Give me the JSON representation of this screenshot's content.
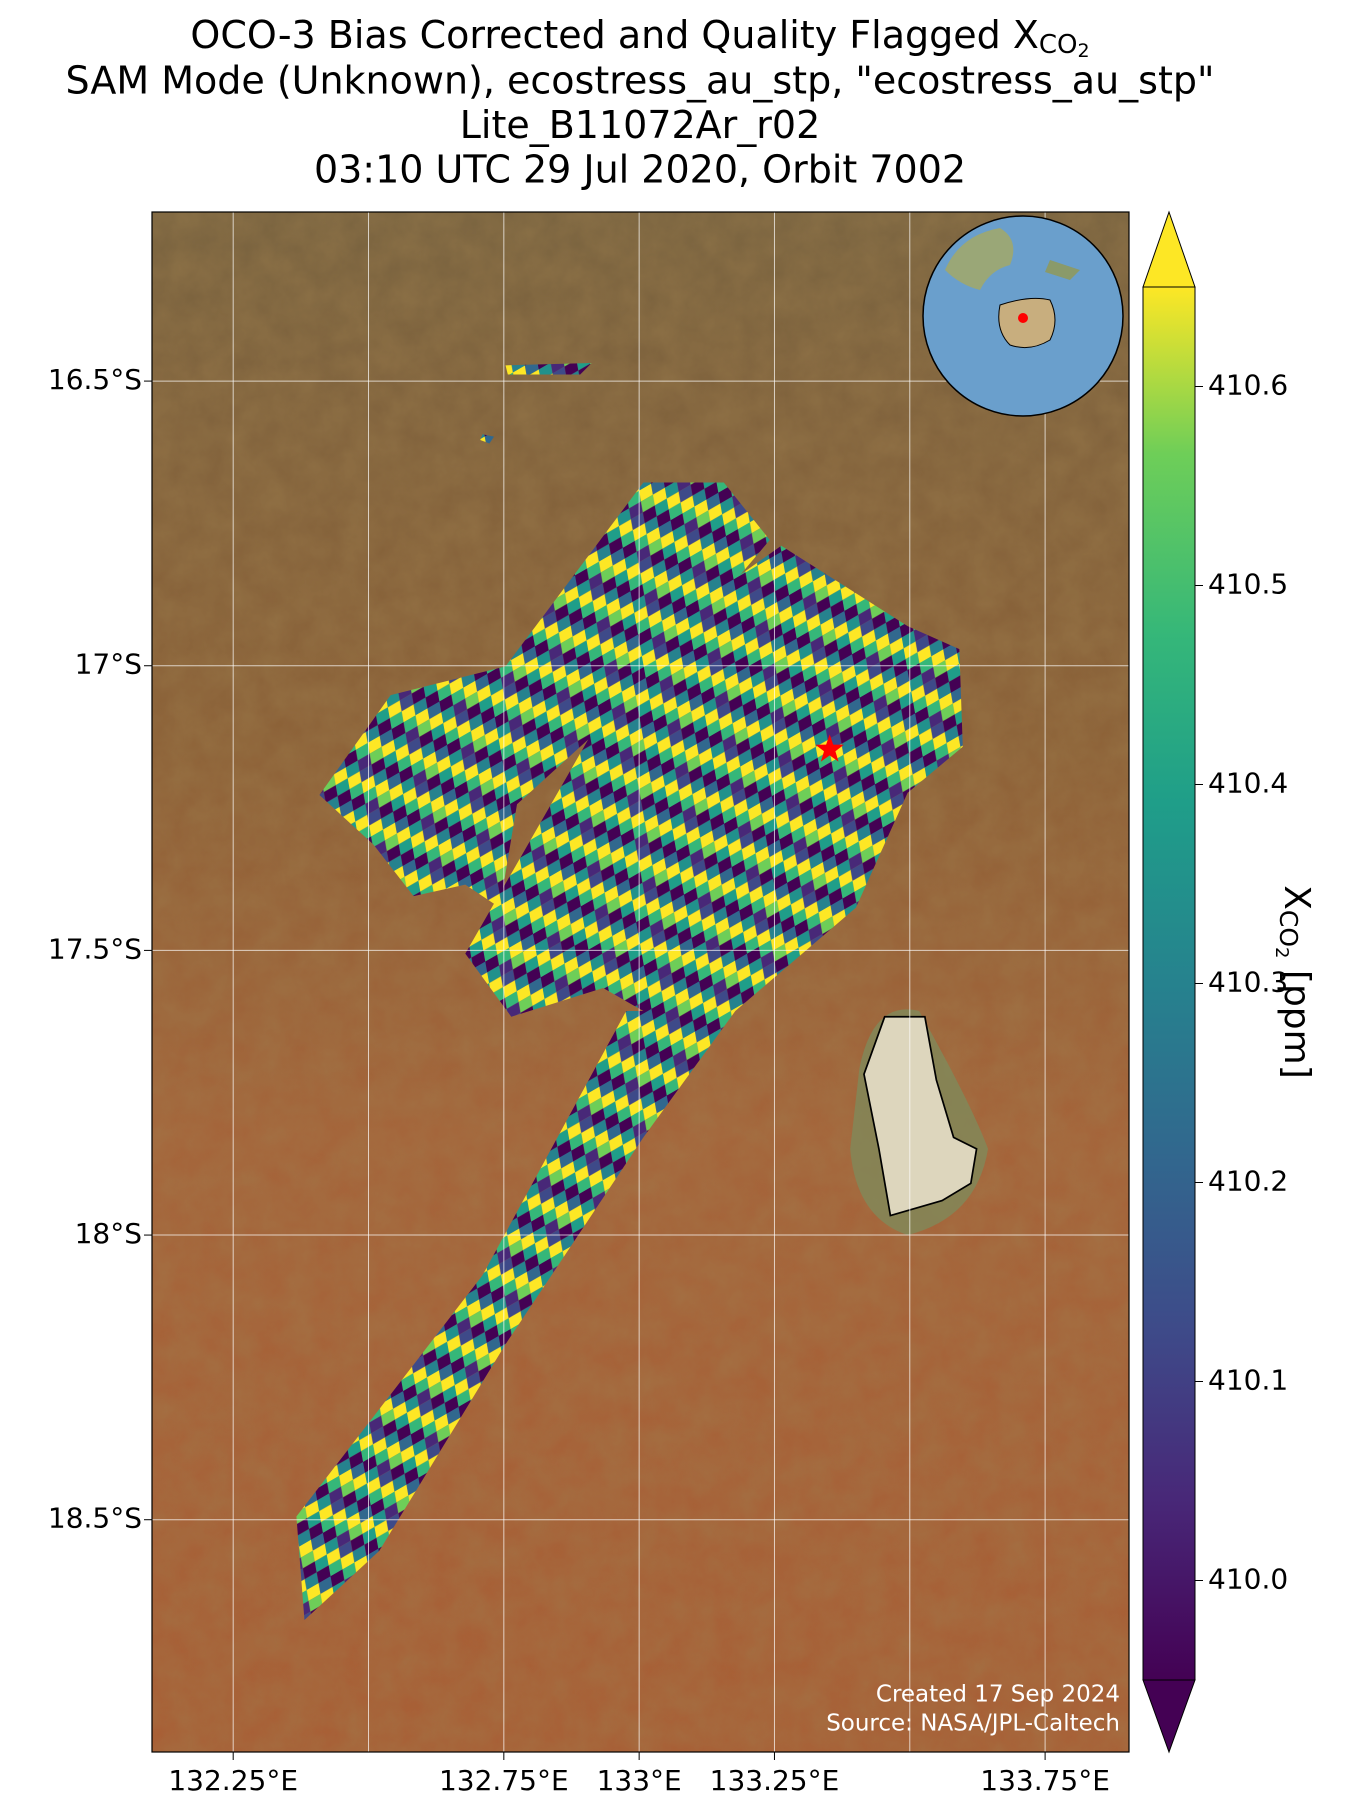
{
  "chart_data": {
    "type": "map",
    "title_line1": {
      "main": "OCO-3 Bias Corrected and Quality Flagged X",
      "sub": "CO",
      "subsub": "2"
    },
    "title_lines": [
      "SAM Mode (Unknown), ecostress_au_stp, \"ecostress_au_stp\"",
      "Lite_B11072Ar_r02",
      "03:10 UTC 29 Jul 2020, Orbit 7002"
    ],
    "xlim": [
      132.1,
      133.905
    ],
    "ylim": [
      -18.908,
      -16.203
    ],
    "xticks": [
      {
        "value": 132.25,
        "label": "132.25°E"
      },
      {
        "value": 132.5,
        "label": null
      },
      {
        "value": 132.75,
        "label": "132.75°E"
      },
      {
        "value": 133,
        "label": "133°E"
      },
      {
        "value": 133.25,
        "label": "133.25°E"
      },
      {
        "value": 133.5,
        "label": null
      },
      {
        "value": 133.75,
        "label": "133.75°E"
      }
    ],
    "yticks": [
      {
        "value": -16.5,
        "label": "16.5°S"
      },
      {
        "value": -17,
        "label": "17°S"
      },
      {
        "value": -17.5,
        "label": "17.5°S"
      },
      {
        "value": -18,
        "label": "18°S"
      },
      {
        "value": -18.5,
        "label": "18.5°S"
      }
    ],
    "grid": true,
    "site": {
      "lon": 133.352,
      "lat": -17.147,
      "color": "#ff0000"
    },
    "colorbar": {
      "label": {
        "main": "X",
        "sub": "CO",
        "subsub": "2",
        "unit": " [ppm]"
      },
      "clim": [
        409.95,
        410.65
      ],
      "ticks": [
        {
          "value": 410,
          "label": "410.0"
        },
        410.1,
        410.2,
        410.3,
        410.4,
        410.5,
        410.6
      ]
    },
    "credits": [
      "Created 17 Sep 2024",
      "Source: NASA/JPL-Caltech"
    ]
  }
}
